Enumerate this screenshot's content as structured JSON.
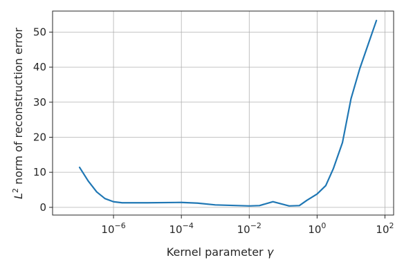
{
  "chart_data": {
    "type": "line",
    "title": "",
    "xlabel": "Kernel parameter",
    "xlabel_symbol": "γ",
    "ylabel_base": "L",
    "ylabel_sup": "2",
    "ylabel_rest": " norm of reconstruction error",
    "xscale": "log",
    "xlim": [
      1.6e-08,
      180
    ],
    "ylim": [
      -2.2,
      56
    ],
    "grid": true,
    "x_ticks": [
      {
        "value": 1e-06,
        "base": "10",
        "exp": "−6"
      },
      {
        "value": 0.0001,
        "base": "10",
        "exp": "−4"
      },
      {
        "value": 0.01,
        "base": "10",
        "exp": "−2"
      },
      {
        "value": 1,
        "base": "10",
        "exp": "0"
      },
      {
        "value": 100,
        "base": "10",
        "exp": "2"
      }
    ],
    "y_ticks": [
      {
        "value": 0,
        "label": "0"
      },
      {
        "value": 10,
        "label": "10"
      },
      {
        "value": 20,
        "label": "20"
      },
      {
        "value": 30,
        "label": "30"
      },
      {
        "value": 40,
        "label": "40"
      },
      {
        "value": 50,
        "label": "50"
      }
    ],
    "series": [
      {
        "color": "#1f77b4",
        "x": [
          1e-07,
          1.8e-07,
          3.2e-07,
          5.6e-07,
          1e-06,
          1.8e-06,
          1e-05,
          0.0001,
          0.0003,
          0.001,
          0.01,
          0.02,
          0.05,
          0.15,
          0.3,
          0.5,
          1,
          1.8,
          3,
          5.6,
          10,
          18,
          32,
          56
        ],
        "y": [
          11.4,
          7.5,
          4.4,
          2.5,
          1.6,
          1.3,
          1.3,
          1.4,
          1.2,
          0.7,
          0.4,
          0.5,
          1.6,
          0.4,
          0.5,
          2.0,
          3.8,
          6.2,
          11.0,
          18.5,
          31.0,
          39.5,
          46.5,
          53.3
        ]
      }
    ]
  },
  "colors": {
    "background": "#ffffff",
    "grid": "#b0b0b0",
    "axis": "#262626"
  }
}
